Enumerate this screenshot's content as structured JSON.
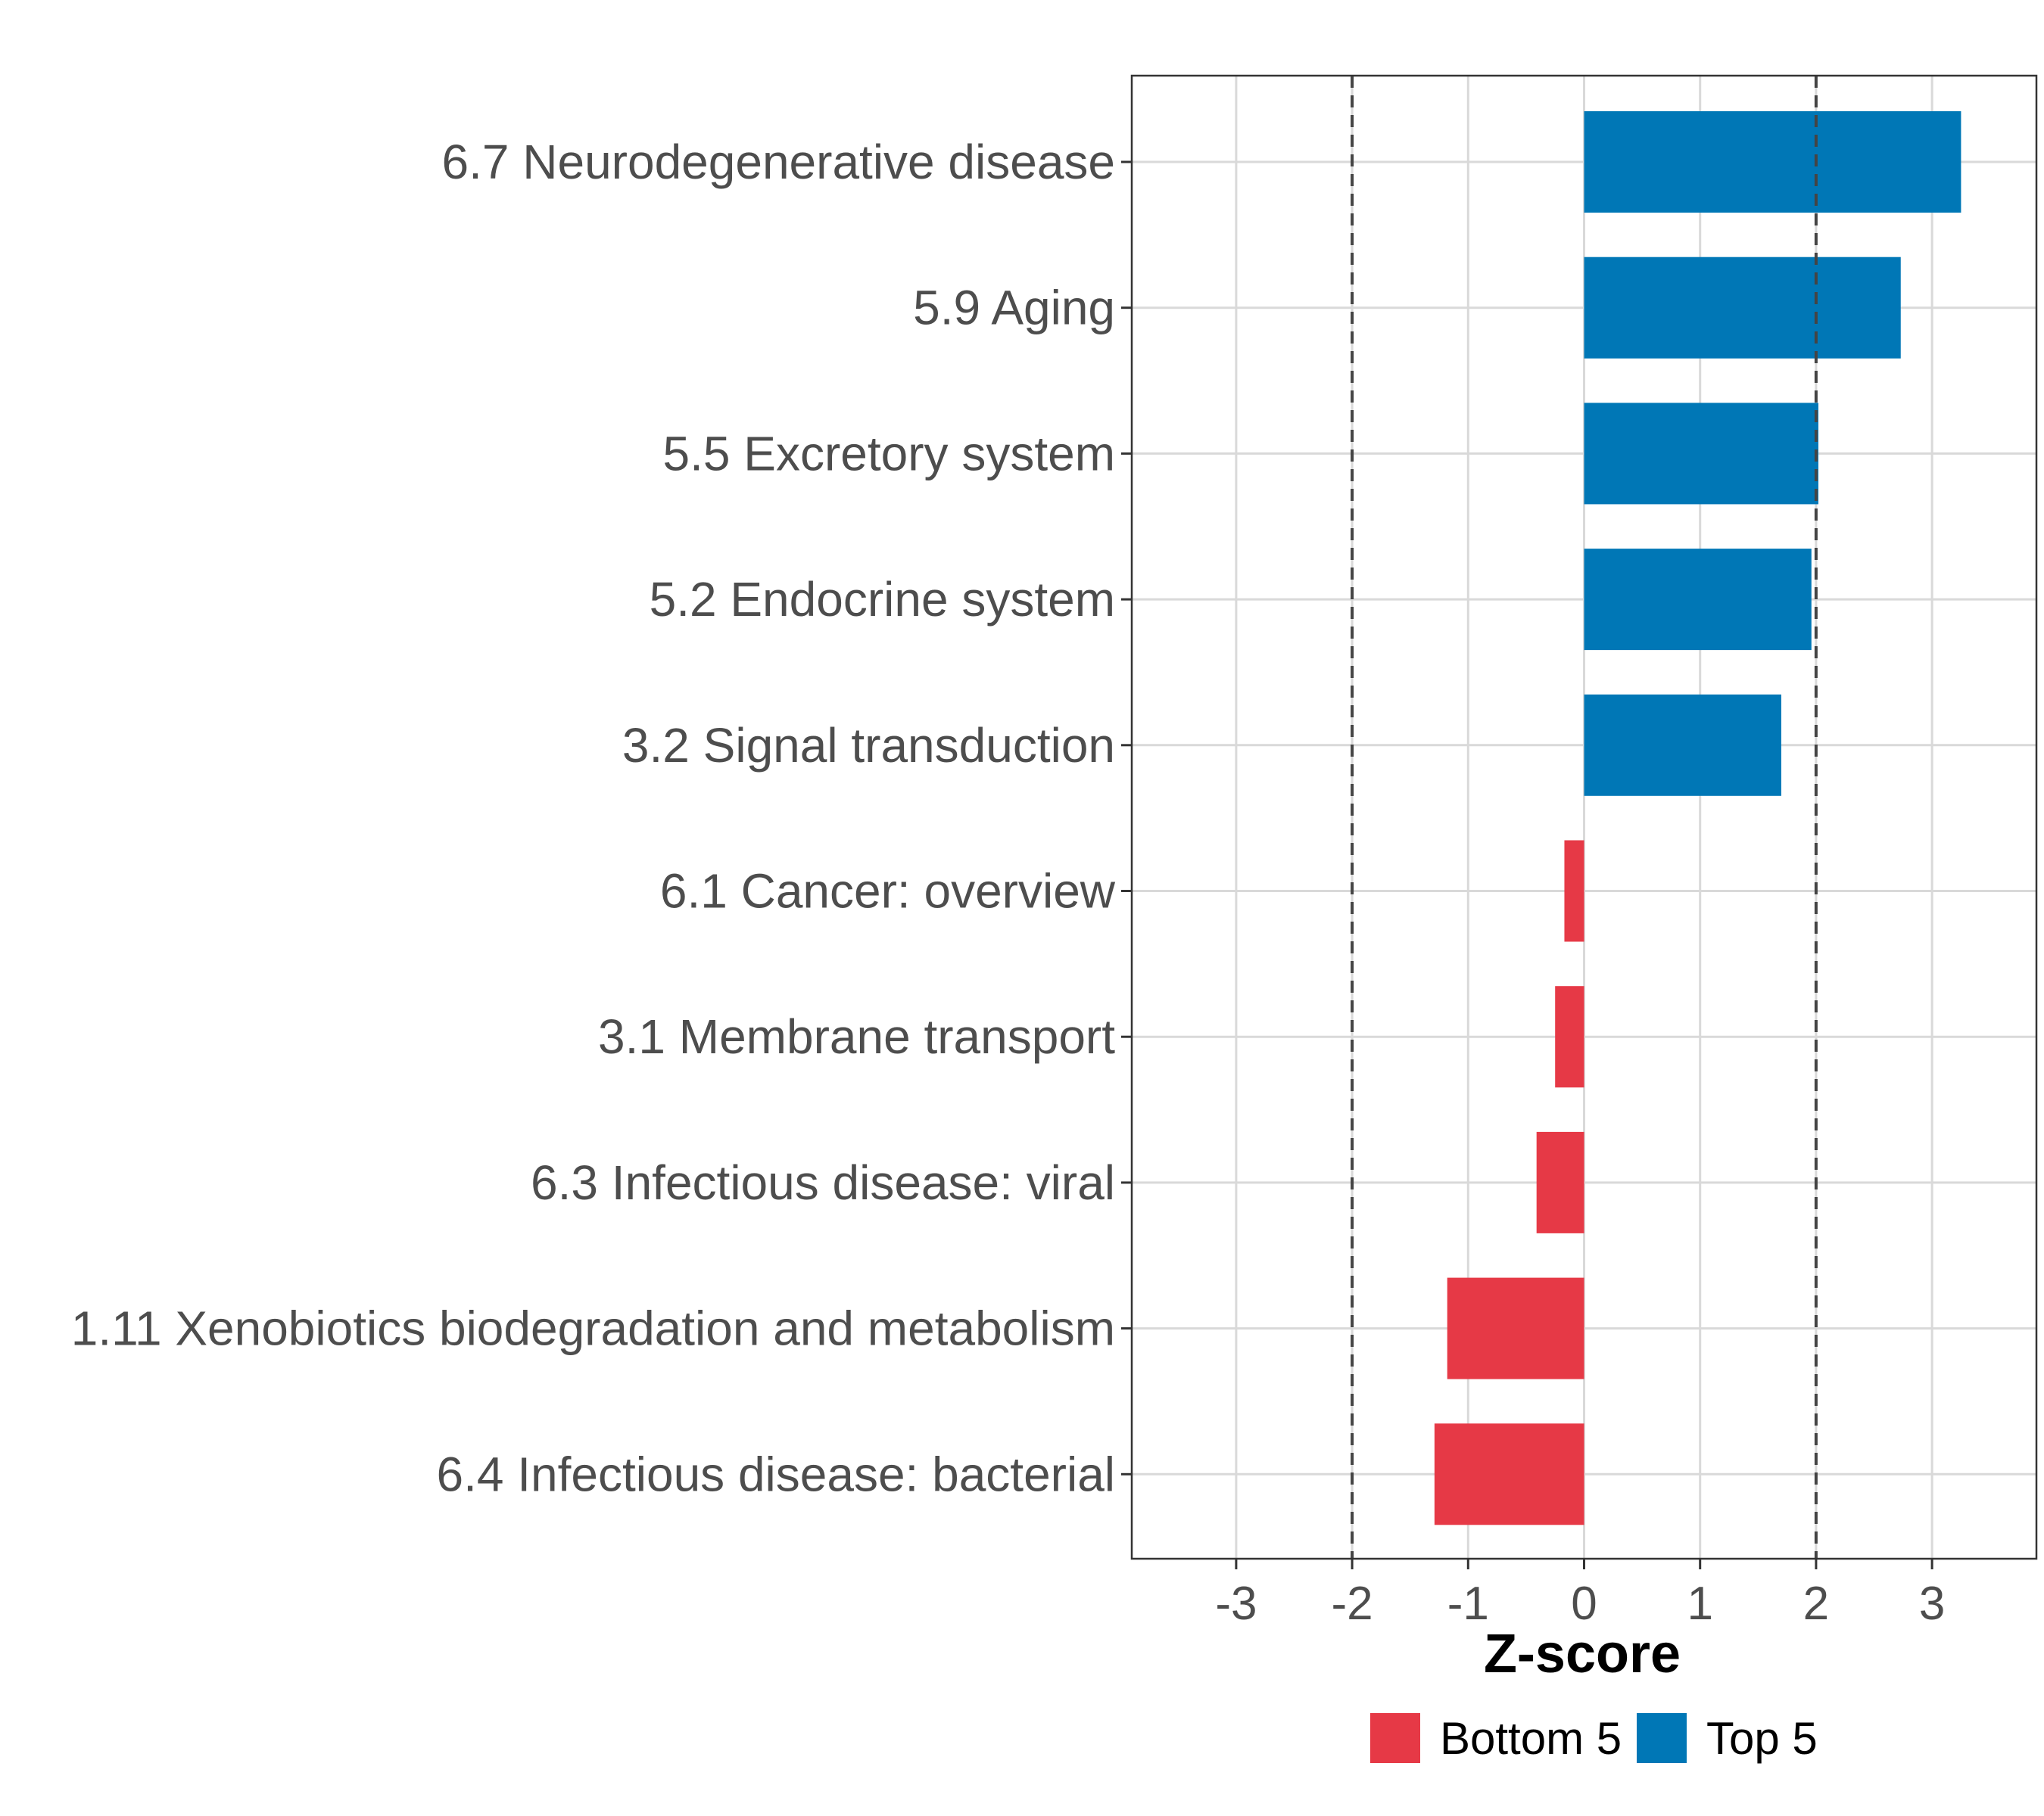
{
  "chart_data": {
    "type": "bar",
    "orientation": "horizontal",
    "xlabel": "Z-score",
    "xlim": [
      -3.9,
      3.9
    ],
    "xticks": [
      -3,
      -2,
      -1,
      0,
      1,
      2,
      3
    ],
    "xtick_labels": [
      "-3",
      "-2",
      "-1",
      "0",
      "1",
      "2",
      "3"
    ],
    "threshold_lines": [
      -2,
      2
    ],
    "grid": true,
    "categories": [
      "6.7 Neurodegenerative disease",
      "5.9 Aging",
      "5.5 Excretory system",
      "5.2 Endocrine system",
      "3.2 Signal transduction",
      "6.1 Cancer: overview",
      "3.1 Membrane transport",
      "6.3 Infectious disease: viral",
      "1.11 Xenobiotics biodegradation and metabolism",
      "6.4 Infectious disease: bacterial"
    ],
    "values": [
      3.25,
      2.73,
      2.02,
      1.96,
      1.7,
      -0.17,
      -0.25,
      -0.41,
      -1.18,
      -1.29
    ],
    "groups": [
      "Top 5",
      "Top 5",
      "Top 5",
      "Top 5",
      "Top 5",
      "Bottom 5",
      "Bottom 5",
      "Bottom 5",
      "Bottom 5",
      "Bottom 5"
    ],
    "legend": {
      "position": "bottom",
      "entries": [
        {
          "label": "Bottom 5",
          "color": "#e63946"
        },
        {
          "label": "Top 5",
          "color": "#0077b6"
        }
      ]
    },
    "colors": {
      "Top 5": "#0077b6",
      "Bottom 5": "#e63946"
    }
  }
}
